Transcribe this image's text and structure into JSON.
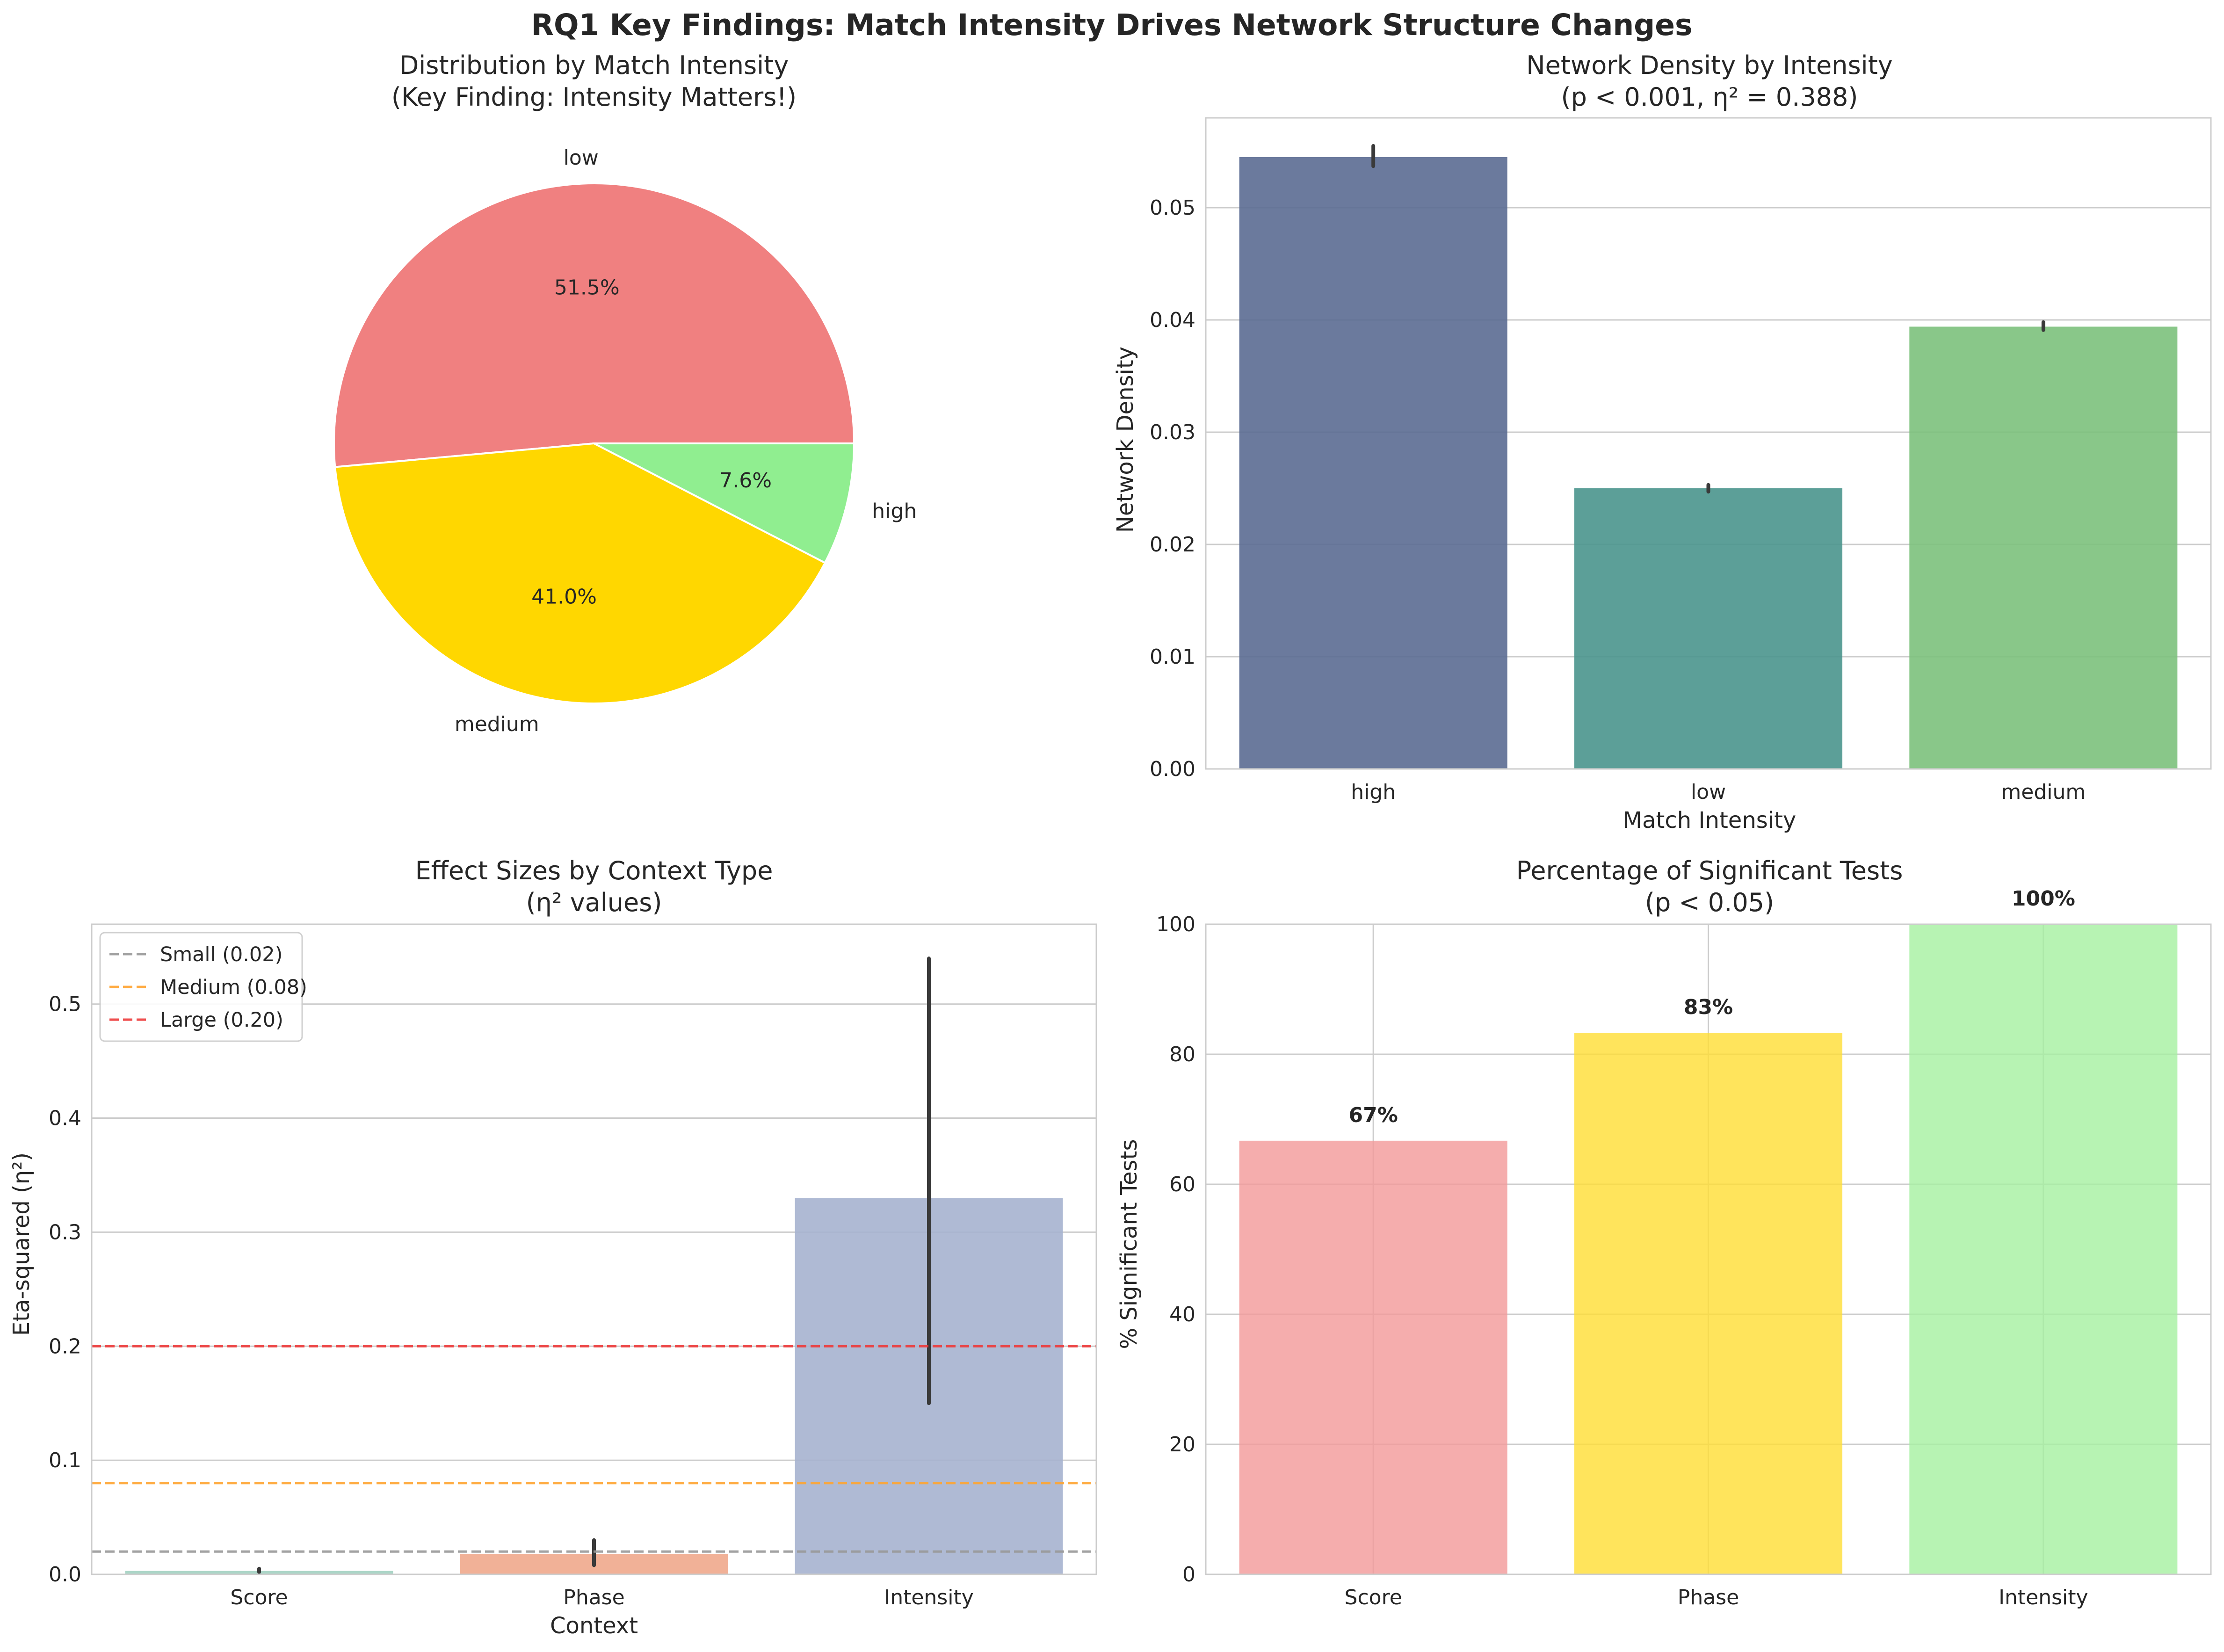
{
  "suptitle": "RQ1 Key Findings: Match Intensity Drives Network Structure Changes",
  "chart_data": [
    {
      "type": "pie",
      "title": "Distribution by Match Intensity",
      "subtitle": "(Key Finding: Intensity Matters!)",
      "labels": [
        "low",
        "medium",
        "high"
      ],
      "values": [
        51.5,
        41.0,
        7.6
      ],
      "value_labels": [
        "51.5%",
        "41.0%",
        "7.6%"
      ],
      "colors": [
        "#f08080",
        "#ffd700",
        "#90ee90"
      ]
    },
    {
      "type": "bar",
      "title": "Network Density by Intensity",
      "subtitle": "(p < 0.001, η² = 0.388)",
      "xlabel": "Match Intensity",
      "ylabel": "Network Density",
      "categories": [
        "high",
        "low",
        "medium"
      ],
      "values": [
        0.0545,
        0.025,
        0.0394
      ],
      "error_low": [
        0.0537,
        0.0247,
        0.0391
      ],
      "error_high": [
        0.0555,
        0.0253,
        0.0398
      ],
      "colors": [
        "#5b6b92",
        "#4a958d",
        "#7cc17c"
      ],
      "ylim": [
        0,
        0.058
      ],
      "yticks": [
        0,
        0.01,
        0.02,
        0.03,
        0.04,
        0.05
      ],
      "ytick_labels": [
        "0.00",
        "0.01",
        "0.02",
        "0.03",
        "0.04",
        "0.05"
      ],
      "grid": true
    },
    {
      "type": "bar",
      "title": "Effect Sizes by Context Type",
      "subtitle": "(η² values)",
      "xlabel": "Context",
      "ylabel": "Eta-squared (η²)",
      "categories": [
        "Score",
        "Phase",
        "Intensity"
      ],
      "values": [
        0.003,
        0.018,
        0.33
      ],
      "error_low": [
        0.002,
        0.008,
        0.15
      ],
      "error_high": [
        0.005,
        0.03,
        0.54
      ],
      "colors": [
        "#a3d1c2",
        "#f0a98c",
        "#a6b3cf"
      ],
      "ylim": [
        0,
        0.57
      ],
      "yticks": [
        0,
        0.1,
        0.2,
        0.3,
        0.4,
        0.5
      ],
      "ytick_labels": [
        "0.0",
        "0.1",
        "0.2",
        "0.3",
        "0.4",
        "0.5"
      ],
      "reference_lines": [
        {
          "label": "Small (0.02)",
          "value": 0.02,
          "color": "#999999"
        },
        {
          "label": "Medium (0.08)",
          "value": 0.08,
          "color": "#ffa531"
        },
        {
          "label": "Large (0.20)",
          "value": 0.2,
          "color": "#ee3b3b"
        }
      ],
      "legend_position": "top-left",
      "grid": true
    },
    {
      "type": "bar",
      "title": "Percentage of Significant Tests",
      "subtitle": "(p < 0.05)",
      "xlabel": "",
      "ylabel": "% Significant Tests",
      "categories": [
        "Score",
        "Phase",
        "Intensity"
      ],
      "values": [
        66.7,
        83.3,
        100
      ],
      "value_labels": [
        "67%",
        "83%",
        "100%"
      ],
      "colors": [
        "#f29898",
        "#ffdd33",
        "#a5f0a0"
      ],
      "ylim": [
        0,
        100
      ],
      "yticks": [
        0,
        20,
        40,
        60,
        80,
        100
      ],
      "ytick_labels": [
        "0",
        "20",
        "40",
        "60",
        "80",
        "100"
      ],
      "grid": true
    }
  ]
}
